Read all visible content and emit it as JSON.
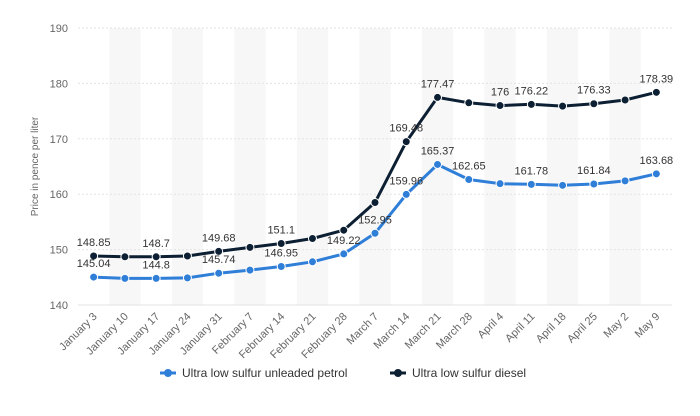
{
  "chart_data": {
    "type": "line",
    "title": "",
    "xlabel": "",
    "ylabel": "Price in pence per liter",
    "ylim": [
      140,
      190
    ],
    "yticks": [
      140,
      150,
      160,
      170,
      180,
      190
    ],
    "grid": true,
    "legend_position": "bottom",
    "categories": [
      "January 3",
      "January 10",
      "January 17",
      "January 24",
      "January 31",
      "February 7",
      "February 14",
      "February 21",
      "February 28",
      "March 7",
      "March 14",
      "March 21",
      "March 28",
      "April 4",
      "April 11",
      "April 18",
      "April 25",
      "May 2",
      "May 9"
    ],
    "series": [
      {
        "name": "Ultra low sulfur unleaded petrol",
        "color": "#2f7ed8",
        "values": [
          145.04,
          144.8,
          144.8,
          144.9,
          145.74,
          146.3,
          146.95,
          147.8,
          149.22,
          152.95,
          159.96,
          165.37,
          162.65,
          161.9,
          161.78,
          161.6,
          161.84,
          162.4,
          163.68
        ],
        "labels": [
          "145.04",
          "",
          "144.8",
          "",
          "145.74",
          "",
          "146.95",
          "",
          "149.22",
          "152.95",
          "159.96",
          "165.37",
          "162.65",
          "",
          "161.78",
          "",
          "161.84",
          "",
          "163.68"
        ]
      },
      {
        "name": "Ultra low sulfur diesel",
        "color": "#0d1f33",
        "values": [
          148.85,
          148.7,
          148.7,
          148.85,
          149.68,
          150.4,
          151.1,
          152.0,
          153.5,
          158.5,
          169.48,
          177.47,
          176.5,
          176.0,
          176.22,
          175.9,
          176.33,
          177.0,
          178.39
        ],
        "labels": [
          "148.85",
          "",
          "148.7",
          "",
          "149.68",
          "",
          "151.1",
          "",
          "",
          "",
          "169.48",
          "177.47",
          "",
          "176",
          "176.22",
          "",
          "176.33",
          "",
          "178.39"
        ]
      }
    ]
  }
}
